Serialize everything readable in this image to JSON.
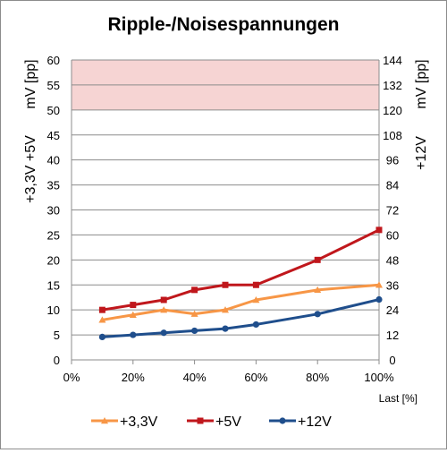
{
  "chart_data": {
    "type": "line",
    "title": "Ripple-/Noisespannungen",
    "xlabel": "Last [%]",
    "ylabel_left_line1": "+3,3V +5V",
    "ylabel_left_line2": "mV [pp]",
    "ylabel_right_line1": "+12V",
    "ylabel_right_line2": "mV [pp]",
    "xlim": [
      0,
      100
    ],
    "x_ticks": [
      "0%",
      "20%",
      "40%",
      "60%",
      "80%",
      "100%"
    ],
    "ylim_left": [
      0,
      60
    ],
    "y_ticks_left": [
      "0",
      "5",
      "10",
      "15",
      "20",
      "25",
      "30",
      "35",
      "40",
      "45",
      "50",
      "55",
      "60"
    ],
    "ylim_right": [
      0,
      144
    ],
    "y_ticks_right": [
      "0",
      "12",
      "24",
      "36",
      "48",
      "60",
      "72",
      "84",
      "96",
      "108",
      "120",
      "132",
      "144"
    ],
    "limit_band_left": [
      50,
      60
    ],
    "grid": true,
    "legend_position": "bottom",
    "series": [
      {
        "name": "+3,3V",
        "axis": "left",
        "color": "#f79646",
        "marker": "triangle",
        "x": [
          10,
          20,
          30,
          40,
          50,
          60,
          80,
          100
        ],
        "values": [
          8,
          9,
          10,
          9.2,
          10,
          12,
          14,
          15
        ]
      },
      {
        "name": "+5V",
        "axis": "left",
        "color": "#c0171c",
        "marker": "square",
        "x": [
          10,
          20,
          30,
          40,
          50,
          60,
          80,
          100
        ],
        "values": [
          10,
          11,
          12,
          14,
          15,
          15,
          20,
          26
        ]
      },
      {
        "name": "+12V",
        "axis": "right",
        "color": "#1f4e8c",
        "marker": "circle",
        "x": [
          10,
          20,
          30,
          40,
          50,
          60,
          80,
          100
        ],
        "values": [
          11,
          12,
          13,
          14,
          15,
          17,
          22,
          29
        ]
      }
    ]
  },
  "colors": {
    "band_fill": "#f6d4d3",
    "grid": "#8c8c8c",
    "axis_text": "#000000"
  }
}
